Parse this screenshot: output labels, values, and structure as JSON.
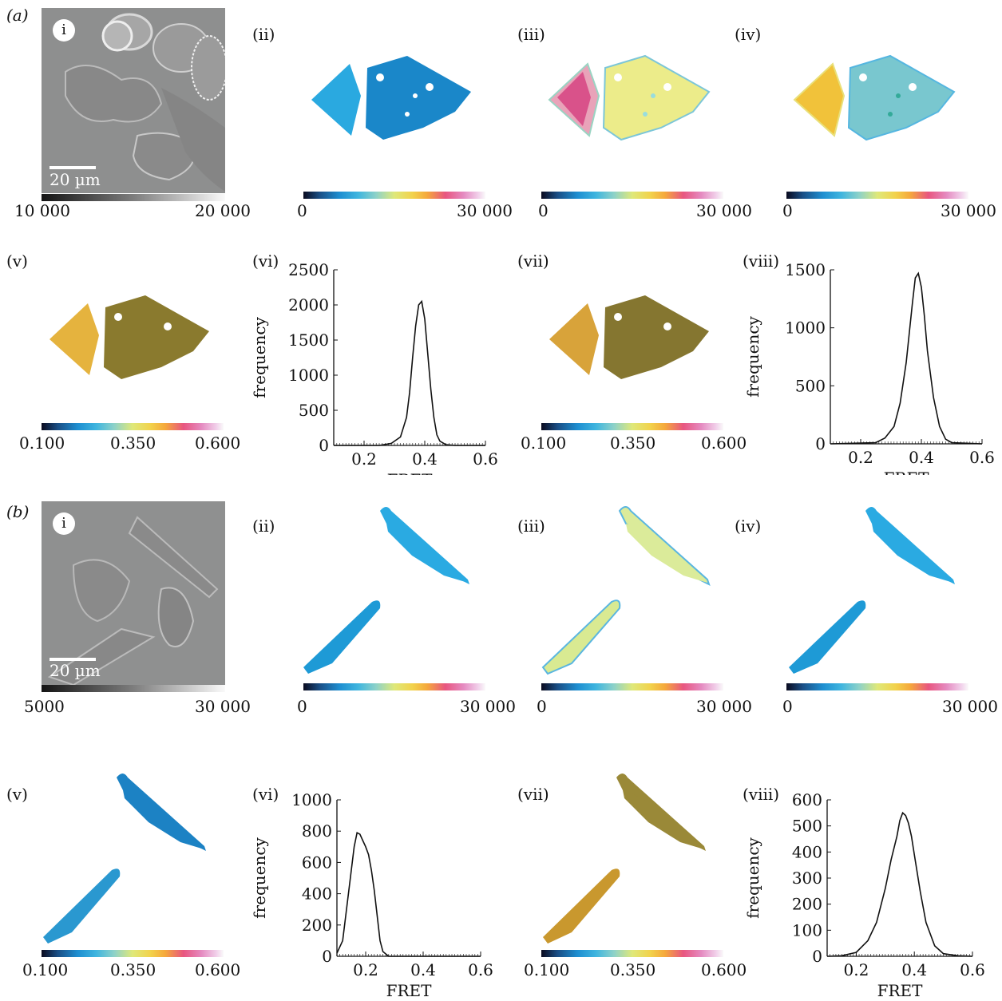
{
  "panel_a": {
    "label": "(a)",
    "i": {
      "label": "i",
      "scale_bar": "20 µm",
      "cbar_min": "10 000",
      "cbar_max": "20 000"
    },
    "ii": {
      "label": "(ii)",
      "cbar_min": "0",
      "cbar_max": "30 000"
    },
    "iii": {
      "label": "(iii)",
      "cbar_min": "0",
      "cbar_max": "30 000"
    },
    "iv": {
      "label": "(iv)",
      "cbar_min": "0",
      "cbar_max": "30 000"
    },
    "v": {
      "label": "(v)",
      "cbar_min": "0.100",
      "cbar_mid": "0.350",
      "cbar_max": "0.600"
    },
    "vi": {
      "label": "(vi)",
      "ylabel": "frequency",
      "xlabel": "FRET",
      "yticks": [
        "0",
        "500",
        "1000",
        "1500",
        "2000",
        "2500"
      ],
      "xticks": [
        "0.2",
        "0.4",
        "0.6"
      ]
    },
    "vii": {
      "label": "(vii)",
      "cbar_min": "0.100",
      "cbar_mid": "0.350",
      "cbar_max": "0.600"
    },
    "viii": {
      "label": "(viii)",
      "ylabel": "frequency",
      "xlabel": "FRET",
      "yticks": [
        "0",
        "500",
        "1000",
        "1500"
      ],
      "xticks": [
        "0.2",
        "0.4",
        "0.6"
      ]
    }
  },
  "panel_b": {
    "label": "(b)",
    "i": {
      "label": "i",
      "scale_bar": "20 µm",
      "cbar_min": "5000",
      "cbar_max": "30 000"
    },
    "ii": {
      "label": "(ii)",
      "cbar_min": "0",
      "cbar_max": "30 000"
    },
    "iii": {
      "label": "(iii)",
      "cbar_min": "0",
      "cbar_max": "30 000"
    },
    "iv": {
      "label": "(iv)",
      "cbar_min": "0",
      "cbar_max": "30 000"
    },
    "v": {
      "label": "(v)",
      "cbar_min": "0.100",
      "cbar_mid": "0.350",
      "cbar_max": "0.600"
    },
    "vi": {
      "label": "(vi)",
      "ylabel": "frequency",
      "xlabel": "FRET",
      "yticks": [
        "0",
        "200",
        "400",
        "600",
        "800",
        "1000"
      ],
      "xticks": [
        "0.2",
        "0.4",
        "0.6"
      ]
    },
    "vii": {
      "label": "(vii)",
      "cbar_min": "0.100",
      "cbar_mid": "0.350",
      "cbar_max": "0.600"
    },
    "viii": {
      "label": "(viii)",
      "ylabel": "frequency",
      "xlabel": "FRET",
      "yticks": [
        "0",
        "100",
        "200",
        "300",
        "400",
        "500",
        "600"
      ],
      "xticks": [
        "0.2",
        "0.4",
        "0.6"
      ]
    }
  },
  "chart_data": [
    {
      "type": "line",
      "id": "a-vi",
      "xlabel": "FRET",
      "ylabel": "frequency",
      "xlim": [
        0.1,
        0.6
      ],
      "ylim": [
        0,
        2500
      ],
      "x": [
        0.1,
        0.25,
        0.29,
        0.32,
        0.34,
        0.35,
        0.36,
        0.37,
        0.38,
        0.39,
        0.4,
        0.41,
        0.42,
        0.43,
        0.44,
        0.45,
        0.47,
        0.5,
        0.6
      ],
      "y": [
        0,
        0,
        30,
        120,
        400,
        750,
        1250,
        1700,
        2000,
        2050,
        1800,
        1300,
        800,
        400,
        150,
        60,
        10,
        0,
        0
      ]
    },
    {
      "type": "line",
      "id": "a-viii",
      "xlabel": "FRET",
      "ylabel": "frequency",
      "xlim": [
        0.1,
        0.6
      ],
      "ylim": [
        0,
        1500
      ],
      "x": [
        0.1,
        0.25,
        0.28,
        0.31,
        0.33,
        0.35,
        0.36,
        0.37,
        0.38,
        0.39,
        0.4,
        0.41,
        0.42,
        0.44,
        0.46,
        0.48,
        0.5,
        0.6
      ],
      "y": [
        0,
        10,
        50,
        150,
        350,
        700,
        950,
        1200,
        1430,
        1470,
        1350,
        1100,
        800,
        400,
        150,
        40,
        10,
        0
      ]
    },
    {
      "type": "line",
      "id": "b-vi",
      "xlabel": "FRET",
      "ylabel": "frequency",
      "xlim": [
        0.1,
        0.6
      ],
      "ylim": [
        0,
        1000
      ],
      "x": [
        0.1,
        0.12,
        0.14,
        0.16,
        0.17,
        0.18,
        0.19,
        0.2,
        0.21,
        0.22,
        0.23,
        0.24,
        0.25,
        0.26,
        0.28,
        0.6
      ],
      "y": [
        20,
        100,
        400,
        700,
        790,
        780,
        740,
        700,
        650,
        550,
        420,
        260,
        100,
        30,
        0,
        0
      ]
    },
    {
      "type": "line",
      "id": "b-viii",
      "xlabel": "FRET",
      "ylabel": "frequency",
      "xlim": [
        0.1,
        0.6
      ],
      "ylim": [
        0,
        600
      ],
      "x": [
        0.1,
        0.15,
        0.2,
        0.24,
        0.27,
        0.3,
        0.32,
        0.34,
        0.35,
        0.36,
        0.37,
        0.38,
        0.39,
        0.4,
        0.42,
        0.44,
        0.47,
        0.5,
        0.55,
        0.6
      ],
      "y": [
        0,
        2,
        15,
        60,
        130,
        260,
        370,
        460,
        520,
        550,
        540,
        510,
        460,
        390,
        250,
        130,
        40,
        10,
        2,
        0
      ]
    }
  ]
}
